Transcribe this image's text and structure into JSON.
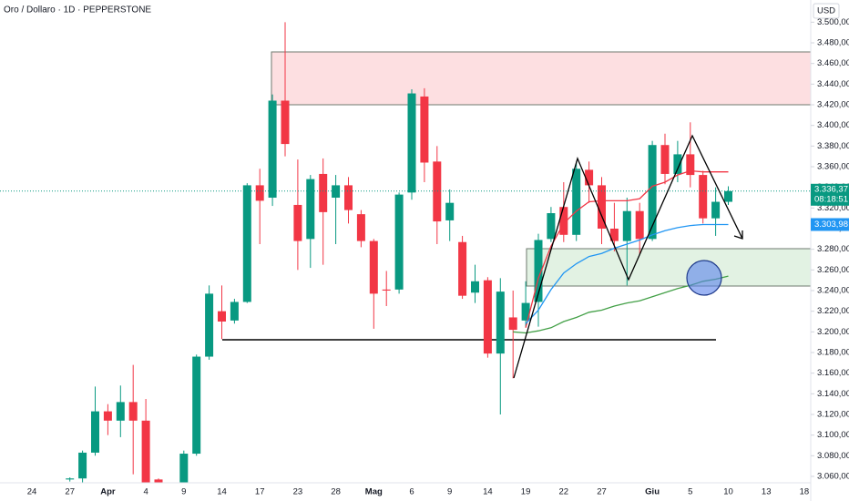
{
  "chart_data": {
    "type": "candlestick",
    "title": "Oro / Dollaro · 1D · PEPPERSTONE",
    "currency": "USD",
    "categories": [
      "24",
      null,
      null,
      "27",
      null,
      null,
      "Apr",
      null,
      null,
      "4",
      null,
      null,
      "9",
      null,
      null,
      "14",
      null,
      null,
      "17",
      null,
      null,
      "23",
      null,
      null,
      "28",
      null,
      null,
      "Mag",
      null,
      null,
      "6",
      null,
      null,
      "9",
      null,
      null,
      "14",
      null,
      null,
      "19",
      null,
      null,
      "22",
      null,
      null,
      "27",
      null,
      null,
      null,
      "Giu",
      null,
      null,
      "5",
      null,
      null,
      "10",
      null,
      null,
      "13",
      null,
      null,
      "18"
    ],
    "open": [
      null,
      null,
      null,
      3057,
      3058,
      3083,
      3123,
      3114,
      3132,
      3114,
      3057,
      null,
      3053,
      3082,
      3176,
      3220,
      3211,
      3229,
      3342,
      3330,
      3424,
      3323,
      3290,
      3353,
      3330,
      3342,
      3314,
      3288,
      3241,
      3241,
      3335,
      3428,
      3365,
      3308,
      3287,
      3238,
      3250,
      3179,
      3214,
      3211,
      3229,
      3290,
      3321,
      3294,
      3357,
      3342,
      3300,
      3288,
      3317,
      3290,
      3381,
      3353,
      3372,
      3352,
      3310,
      3326,
      null,
      null,
      null,
      null,
      null,
      null
    ],
    "high": [
      null,
      null,
      null,
      3059,
      3085,
      3147,
      3130,
      3148,
      3168,
      3135,
      3058,
      null,
      3085,
      3178,
      3245,
      3245,
      3232,
      3344,
      3358,
      3430,
      3500,
      3367,
      3352,
      3368,
      3352,
      3350,
      3318,
      3290,
      3259,
      3335,
      3435,
      3436,
      3380,
      3338,
      3293,
      3265,
      3253,
      3252,
      3240,
      3249,
      3295,
      3321,
      3345,
      3365,
      3365,
      3350,
      3325,
      3330,
      3325,
      3385,
      3392,
      3385,
      3403,
      3356,
      3340,
      3341,
      null,
      null,
      null,
      null,
      null,
      null
    ],
    "low": [
      null,
      null,
      null,
      3055,
      3054,
      3080,
      3100,
      3098,
      3062,
      3040,
      3045,
      null,
      3045,
      3080,
      3173,
      3193,
      3208,
      3228,
      3285,
      3322,
      3370,
      3260,
      3262,
      3265,
      3285,
      3305,
      3282,
      3203,
      3225,
      3237,
      3328,
      3345,
      3285,
      3288,
      3232,
      3228,
      3175,
      3120,
      3155,
      3205,
      3205,
      3287,
      3287,
      3288,
      3325,
      3285,
      3278,
      3245,
      3275,
      3288,
      3343,
      3345,
      3340,
      3305,
      3293,
      3323,
      null,
      null,
      null,
      null,
      null,
      null
    ],
    "close": [
      null,
      null,
      null,
      3058,
      3083,
      3123,
      3114,
      3132,
      3114,
      3048,
      3052,
      null,
      3082,
      3176,
      3237,
      3210,
      3229,
      3342,
      3327,
      3424,
      3382,
      3288,
      3348,
      3316,
      3342,
      3318,
      3288,
      3237,
      3240,
      3333,
      3431,
      3364,
      3307,
      3325,
      3235,
      3249,
      3179,
      3239,
      3202,
      3228,
      3289,
      3315,
      3294,
      3358,
      3342,
      3300,
      3288,
      3317,
      3290,
      3381,
      3353,
      3372,
      3352,
      3310,
      3326,
      3336.37,
      null,
      null,
      null,
      null,
      null,
      null
    ],
    "up_color": "#089981",
    "down_color": "#f23645",
    "series": [
      {
        "color": "#f23645",
        "values": [
          null,
          null,
          null,
          null,
          null,
          null,
          null,
          null,
          null,
          null,
          null,
          null,
          null,
          null,
          null,
          null,
          null,
          null,
          null,
          null,
          null,
          null,
          null,
          null,
          null,
          null,
          null,
          null,
          null,
          null,
          null,
          null,
          null,
          null,
          null,
          null,
          null,
          null,
          null,
          3204,
          3252,
          3283,
          3305,
          3317,
          3326,
          3327,
          3327,
          3327,
          3329,
          3341,
          3345,
          3352,
          3356,
          3355,
          3355,
          3355,
          null,
          null,
          null,
          null,
          null,
          null
        ]
      },
      {
        "color": "#2196f3",
        "values": [
          null,
          null,
          null,
          null,
          null,
          null,
          null,
          null,
          null,
          null,
          null,
          null,
          null,
          null,
          null,
          null,
          null,
          null,
          null,
          null,
          null,
          null,
          null,
          null,
          null,
          null,
          null,
          null,
          null,
          null,
          null,
          null,
          null,
          null,
          null,
          null,
          null,
          null,
          null,
          3208,
          3221,
          3241,
          3257,
          3266,
          3273,
          3276,
          3281,
          3285,
          3289,
          3294,
          3298,
          3301,
          3303,
          3304,
          3304,
          3303.98,
          null,
          null,
          null,
          null,
          null,
          null
        ]
      },
      {
        "color": "#43a047",
        "values": [
          null,
          null,
          null,
          null,
          null,
          null,
          null,
          null,
          null,
          null,
          null,
          null,
          null,
          null,
          null,
          null,
          null,
          null,
          null,
          null,
          null,
          null,
          null,
          null,
          null,
          null,
          null,
          null,
          null,
          null,
          null,
          null,
          null,
          null,
          null,
          null,
          null,
          null,
          3200,
          3199,
          3201,
          3204,
          3210,
          3214,
          3219,
          3221,
          3225,
          3228,
          3230,
          3234,
          3238,
          3242,
          3245,
          3249,
          3251,
          3254,
          null,
          null,
          null,
          null,
          null,
          null
        ]
      }
    ],
    "last_price_label": "3.336,37",
    "countdown": "08:18:51",
    "ma_price_label": "3.303,98",
    "ylim": [
      3053.8,
      3521.5
    ],
    "yticks": [
      {
        "value": 3060,
        "label": "3.060,00"
      },
      {
        "value": 3080,
        "label": "3.080,00"
      },
      {
        "value": 3100,
        "label": "3.100,00"
      },
      {
        "value": 3120,
        "label": "3.120,00"
      },
      {
        "value": 3140,
        "label": "3.140,00"
      },
      {
        "value": 3160,
        "label": "3.160,00"
      },
      {
        "value": 3180,
        "label": "3.180,00"
      },
      {
        "value": 3200,
        "label": "3.200,00"
      },
      {
        "value": 3220,
        "label": "3.220,00"
      },
      {
        "value": 3240,
        "label": "3.240,00"
      },
      {
        "value": 3260,
        "label": "3.260,00"
      },
      {
        "value": 3280,
        "label": "3.280,00"
      },
      {
        "value": 3300,
        "label": "3.300,00"
      },
      {
        "value": 3320,
        "label": "3.320,00"
      },
      {
        "value": 3340,
        "label": "3.340,00"
      },
      {
        "value": 3360,
        "label": "3.360,00"
      },
      {
        "value": 3380,
        "label": "3.380,00"
      },
      {
        "value": 3400,
        "label": "3.400,00"
      },
      {
        "value": 3420,
        "label": "3.420,00"
      },
      {
        "value": 3440,
        "label": "3.440,00"
      },
      {
        "value": 3460,
        "label": "3.460,00"
      },
      {
        "value": 3480,
        "label": "3.480,00"
      },
      {
        "value": 3500,
        "label": "3.500,00"
      }
    ],
    "grid": false
  }
}
